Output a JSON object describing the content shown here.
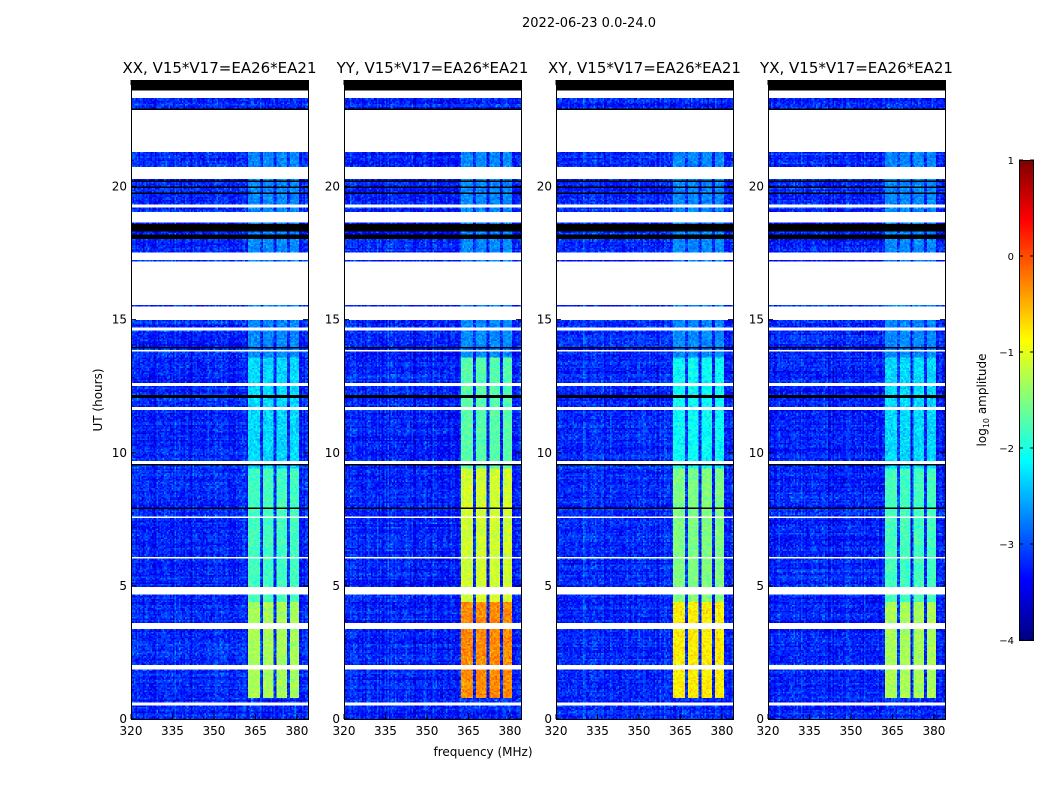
{
  "chart_data": {
    "type": "heatmap",
    "title": "2022-06-23 0.0-24.0",
    "xlabel": "frequency (MHz)",
    "ylabel": "UT (hours)",
    "xlim": [
      320,
      384
    ],
    "ylim": [
      0,
      24
    ],
    "xticks": [
      320,
      335,
      350,
      365,
      380
    ],
    "yticks": [
      0,
      5,
      10,
      15,
      20
    ],
    "panels": [
      {
        "title": "XX, V15*V17=EA26*EA21",
        "rfi_peak": -1.3,
        "rfi_mid": -1.8,
        "rfi_high": -2.3
      },
      {
        "title": "YY, V15*V17=EA26*EA21",
        "rfi_peak": -0.3,
        "rfi_mid": -1.1,
        "rfi_high": -1.7
      },
      {
        "title": "XY, V15*V17=EA26*EA21",
        "rfi_peak": -0.8,
        "rfi_mid": -1.5,
        "rfi_high": -2.1
      },
      {
        "title": "YX, V15*V17=EA26*EA21",
        "rfi_peak": -1.3,
        "rfi_mid": -1.8,
        "rfi_high": -2.3
      }
    ],
    "background_log_amp": -3.2,
    "rfi_bands_mhz": [
      [
        362.5,
        366.5
      ],
      [
        367.5,
        371.5
      ],
      [
        372.5,
        376.5
      ],
      [
        377.5,
        380.5
      ]
    ],
    "flagged_white_hours": [
      [
        23.35,
        23.6
      ],
      [
        21.3,
        22.85
      ],
      [
        20.3,
        20.75
      ],
      [
        19.2,
        19.35
      ],
      [
        18.65,
        19.05
      ],
      [
        17.25,
        17.5
      ],
      [
        15.55,
        17.2
      ],
      [
        15.0,
        15.5
      ],
      [
        14.6,
        14.7
      ],
      [
        13.8,
        13.85
      ],
      [
        12.5,
        12.6
      ],
      [
        11.6,
        11.7
      ],
      [
        9.6,
        9.7
      ],
      [
        7.55,
        7.6
      ],
      [
        6.05,
        6.1
      ],
      [
        4.65,
        4.95
      ],
      [
        3.4,
        3.6
      ],
      [
        1.85,
        2.05
      ],
      [
        0.5,
        0.6
      ]
    ],
    "flagged_black_hours": [
      [
        23.6,
        24.0
      ],
      [
        22.88,
        22.95
      ],
      [
        20.15,
        20.25
      ],
      [
        19.95,
        20.02
      ],
      [
        19.7,
        19.78
      ],
      [
        18.3,
        18.6
      ],
      [
        18.05,
        18.2
      ],
      [
        12.05,
        12.15
      ],
      [
        9.5,
        9.6
      ],
      [
        13.9,
        13.95
      ],
      [
        7.9,
        7.95
      ]
    ],
    "colorbar": {
      "label": "log10 amplitude",
      "label_base": "log",
      "label_sub": "10",
      "label_rest": " amplitude",
      "range": [
        -4,
        1
      ],
      "ticks": [
        1,
        0,
        -1,
        -2,
        -3,
        -4
      ],
      "tick_labels": [
        "1",
        "0",
        "−1",
        "−2",
        "−3",
        "−4"
      ],
      "colormap": "jet"
    }
  }
}
